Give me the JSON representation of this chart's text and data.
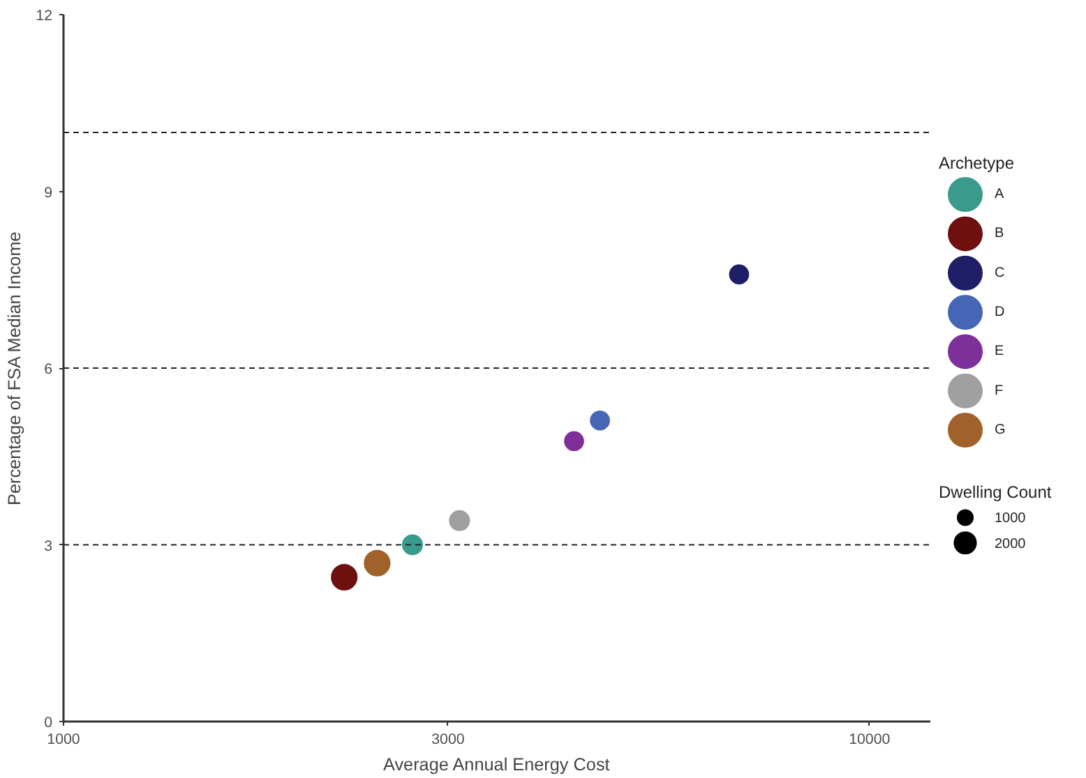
{
  "chart_data": {
    "type": "bubble",
    "xlabel": "Average Annual Energy Cost",
    "ylabel": "Percentage of FSA Median Income",
    "legend_title": "Archetype",
    "log": "x",
    "xlim": [
      1000,
      11900
    ],
    "xticks": [
      1000,
      3000,
      10000
    ],
    "ylim": [
      0,
      12
    ],
    "yticks": [
      0,
      3,
      6,
      9,
      12
    ],
    "legend": "right",
    "marker": "circle",
    "size_legend": [
      1000,
      2000
    ],
    "annotations": [
      "Dwelling Count"
    ],
    "series": [
      {
        "name": "A",
        "color": "#3a9a8c",
        "x": [
          2710
        ],
        "values": [
          3.0
        ],
        "sizes": [
          1620
        ]
      },
      {
        "name": "B",
        "color": "#6e1010",
        "x": [
          2230
        ],
        "values": [
          2.45
        ],
        "sizes": [
          2680
        ]
      },
      {
        "name": "C",
        "color": "#1e1f66",
        "x": [
          6890
        ],
        "values": [
          7.59
        ],
        "sizes": [
          1460
        ]
      },
      {
        "name": "D",
        "color": "#4466b4",
        "x": [
          4630
        ],
        "values": [
          5.11
        ],
        "sizes": [
          1460
        ]
      },
      {
        "name": "E",
        "color": "#7d2f9a",
        "x": [
          4300
        ],
        "values": [
          4.76
        ],
        "sizes": [
          1460
        ]
      },
      {
        "name": "F",
        "color": "#a0a0a0",
        "x": [
          3100
        ],
        "values": [
          3.41
        ],
        "sizes": [
          1620
        ]
      },
      {
        "name": "G",
        "color": "#a0622a",
        "x": [
          2450
        ],
        "values": [
          2.69
        ],
        "sizes": [
          2680
        ]
      }
    ],
    "ref_lines": [
      {
        "axis": "y",
        "value": 3,
        "line_style": "dashed"
      },
      {
        "axis": "y",
        "value": 6,
        "line_style": "dashed"
      },
      {
        "axis": "y",
        "value": 10,
        "line_style": "dashed"
      }
    ]
  }
}
